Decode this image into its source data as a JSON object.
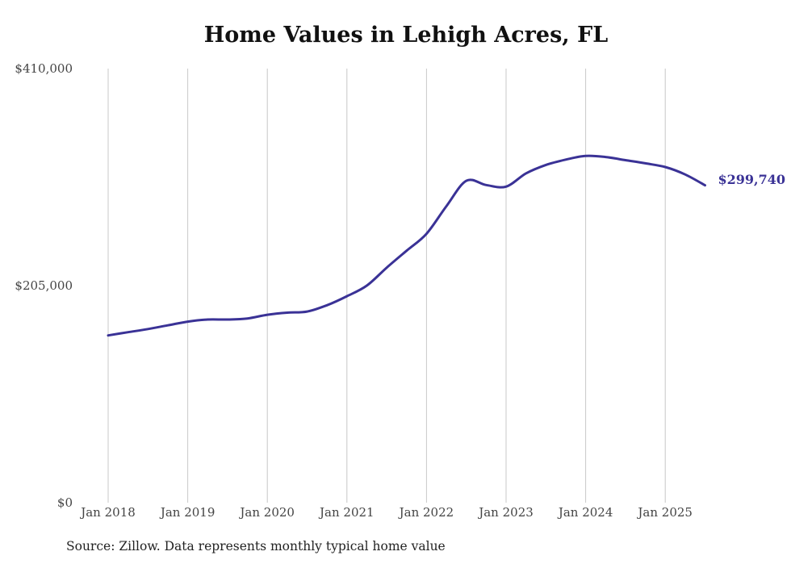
{
  "chart_data": {
    "type": "line",
    "title": "Home Values in Lehigh Acres, FL",
    "xlabel": "",
    "ylabel": "",
    "ylim": [
      0,
      410000
    ],
    "y_ticks": [
      {
        "value": 0,
        "label": "$0"
      },
      {
        "value": 205000,
        "label": "$205,000"
      },
      {
        "value": 410000,
        "label": "$410,000"
      }
    ],
    "x_ticks": [
      {
        "value": "2018-01",
        "label": "Jan 2018"
      },
      {
        "value": "2019-01",
        "label": "Jan 2019"
      },
      {
        "value": "2020-01",
        "label": "Jan 2020"
      },
      {
        "value": "2021-01",
        "label": "Jan 2021"
      },
      {
        "value": "2022-01",
        "label": "Jan 2022"
      },
      {
        "value": "2023-01",
        "label": "Jan 2023"
      },
      {
        "value": "2024-01",
        "label": "Jan 2024"
      },
      {
        "value": "2025-01",
        "label": "Jan 2025"
      }
    ],
    "x_range": [
      "2018-01",
      "2025-07"
    ],
    "grid": "vertical",
    "series_color": "#3a3296",
    "series": [
      {
        "name": "",
        "points": [
          {
            "x": "2018-01",
            "y": 158000
          },
          {
            "x": "2018-04",
            "y": 161000
          },
          {
            "x": "2018-07",
            "y": 164000
          },
          {
            "x": "2018-10",
            "y": 167500
          },
          {
            "x": "2019-01",
            "y": 171000
          },
          {
            "x": "2019-04",
            "y": 173000
          },
          {
            "x": "2019-07",
            "y": 173000
          },
          {
            "x": "2019-10",
            "y": 174000
          },
          {
            "x": "2020-01",
            "y": 177500
          },
          {
            "x": "2020-04",
            "y": 179500
          },
          {
            "x": "2020-07",
            "y": 180500
          },
          {
            "x": "2020-10",
            "y": 186500
          },
          {
            "x": "2021-01",
            "y": 195000
          },
          {
            "x": "2021-04",
            "y": 205000
          },
          {
            "x": "2021-07",
            "y": 222000
          },
          {
            "x": "2021-10",
            "y": 238000
          },
          {
            "x": "2022-01",
            "y": 254000
          },
          {
            "x": "2022-04",
            "y": 280000
          },
          {
            "x": "2022-07",
            "y": 304000
          },
          {
            "x": "2022-10",
            "y": 300000
          },
          {
            "x": "2023-01",
            "y": 298500
          },
          {
            "x": "2023-04",
            "y": 311000
          },
          {
            "x": "2023-07",
            "y": 319000
          },
          {
            "x": "2023-10",
            "y": 324000
          },
          {
            "x": "2024-01",
            "y": 327500
          },
          {
            "x": "2024-04",
            "y": 326500
          },
          {
            "x": "2024-07",
            "y": 323500
          },
          {
            "x": "2024-10",
            "y": 320500
          },
          {
            "x": "2025-01",
            "y": 317000
          },
          {
            "x": "2025-04",
            "y": 310000
          },
          {
            "x": "2025-07",
            "y": 299740
          }
        ]
      }
    ],
    "end_label": "$299,740",
    "source": "Source: Zillow. Data represents monthly typical home value"
  }
}
